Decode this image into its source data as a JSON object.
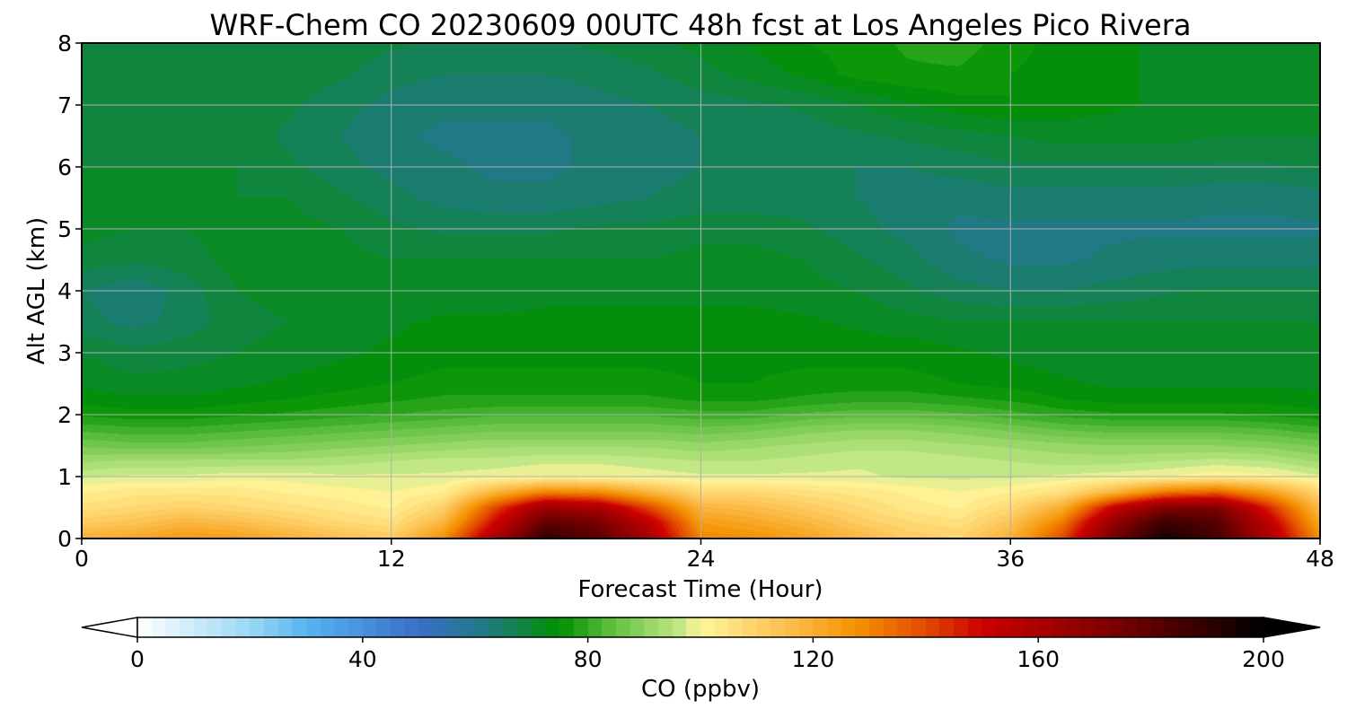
{
  "chart_data": {
    "type": "heatmap",
    "title": "WRF-Chem CO  20230609 00UTC 48h fcst at Los Angeles Pico Rivera",
    "xlabel": "Forecast Time (Hour)",
    "ylabel": "Alt AGL (km)",
    "xlim": [
      0,
      48
    ],
    "ylim": [
      0,
      8
    ],
    "xticks": [
      0,
      12,
      24,
      36,
      48
    ],
    "yticks": [
      0,
      1,
      2,
      3,
      4,
      5,
      6,
      7,
      8
    ],
    "grid": true,
    "colorbar": {
      "label": "CO  (ppbv)",
      "range": [
        0,
        200
      ],
      "ticks": [
        0,
        40,
        80,
        120,
        160,
        200
      ],
      "extend": "both",
      "orientation": "horizontal",
      "stops": [
        {
          "value": 0,
          "color": "#ffffff"
        },
        {
          "value": 20,
          "color": "#9ad8f5"
        },
        {
          "value": 30,
          "color": "#56b4f0"
        },
        {
          "value": 50,
          "color": "#3a6fc8"
        },
        {
          "value": 62,
          "color": "#1f7a80"
        },
        {
          "value": 75,
          "color": "#009000"
        },
        {
          "value": 84,
          "color": "#5cbe3c"
        },
        {
          "value": 97,
          "color": "#c8ea8a"
        },
        {
          "value": 100,
          "color": "#fff59a"
        },
        {
          "value": 115,
          "color": "#fcc050"
        },
        {
          "value": 128,
          "color": "#f49000"
        },
        {
          "value": 140,
          "color": "#e24a00"
        },
        {
          "value": 150,
          "color": "#cc0000"
        },
        {
          "value": 170,
          "color": "#880000"
        },
        {
          "value": 190,
          "color": "#300000"
        },
        {
          "value": 200,
          "color": "#000000"
        }
      ]
    },
    "x": [
      0,
      2,
      4,
      6,
      8,
      10,
      12,
      14,
      16,
      18,
      20,
      22,
      24,
      26,
      28,
      30,
      32,
      34,
      36,
      38,
      40,
      42,
      44,
      46,
      48
    ],
    "y": [
      0,
      0.25,
      0.5,
      0.75,
      1.0,
      1.25,
      1.5,
      1.75,
      2.0,
      2.25,
      2.5,
      3.0,
      3.5,
      4.0,
      4.5,
      5.0,
      5.5,
      6.0,
      6.5,
      7.0,
      7.5,
      8.0
    ],
    "values": [
      [
        120,
        122,
        126,
        124,
        120,
        116,
        112,
        128,
        160,
        190,
        180,
        160,
        130,
        128,
        124,
        118,
        112,
        110,
        120,
        140,
        175,
        195,
        185,
        160,
        128
      ],
      [
        112,
        114,
        118,
        116,
        112,
        108,
        106,
        118,
        150,
        180,
        175,
        155,
        125,
        122,
        118,
        112,
        108,
        106,
        114,
        132,
        168,
        188,
        182,
        155,
        122
      ],
      [
        106,
        108,
        110,
        108,
        106,
        104,
        102,
        110,
        140,
        165,
        160,
        140,
        118,
        116,
        112,
        108,
        104,
        102,
        108,
        120,
        152,
        172,
        172,
        145,
        116
      ],
      [
        102,
        104,
        104,
        104,
        102,
        101,
        100,
        102,
        118,
        130,
        128,
        118,
        108,
        108,
        106,
        104,
        102,
        100,
        102,
        106,
        118,
        132,
        136,
        124,
        108
      ],
      [
        97,
        98,
        98,
        99,
        99,
        98,
        98,
        98,
        99,
        100,
        100,
        99,
        98,
        98,
        98,
        98,
        97,
        97,
        97,
        98,
        99,
        100,
        102,
        101,
        98
      ],
      [
        92,
        93,
        93,
        93,
        93,
        94,
        95,
        96,
        96,
        97,
        97,
        96,
        95,
        95,
        96,
        97,
        97,
        96,
        95,
        94,
        94,
        95,
        96,
        95,
        92
      ],
      [
        87,
        86,
        86,
        87,
        88,
        89,
        90,
        91,
        92,
        92,
        92,
        92,
        91,
        92,
        93,
        94,
        94,
        93,
        92,
        91,
        90,
        90,
        90,
        89,
        87
      ],
      [
        82,
        81,
        81,
        82,
        83,
        84,
        85,
        86,
        87,
        87,
        87,
        87,
        86,
        87,
        89,
        90,
        90,
        89,
        87,
        85,
        84,
        84,
        84,
        83,
        81
      ],
      [
        77,
        76,
        76,
        77,
        78,
        79,
        80,
        81,
        82,
        82,
        82,
        82,
        81,
        81,
        83,
        84,
        84,
        83,
        81,
        79,
        78,
        78,
        78,
        77,
        76
      ],
      [
        74,
        73,
        73,
        74,
        75,
        76,
        77,
        78,
        78,
        78,
        78,
        78,
        77,
        77,
        78,
        79,
        79,
        78,
        77,
        75,
        74,
        74,
        74,
        74,
        73
      ],
      [
        72,
        71,
        71,
        72,
        73,
        74,
        75,
        76,
        76,
        76,
        76,
        76,
        75,
        75,
        76,
        76,
        76,
        75,
        74,
        73,
        72,
        72,
        72,
        72,
        72
      ],
      [
        70,
        68,
        69,
        70,
        71,
        72,
        73,
        74,
        74,
        74,
        74,
        74,
        74,
        74,
        74,
        74,
        74,
        73,
        72,
        71,
        71,
        71,
        71,
        71,
        71
      ],
      [
        66,
        64,
        66,
        69,
        70,
        71,
        72,
        73,
        73,
        73,
        73,
        73,
        73,
        73,
        73,
        72,
        71,
        70,
        70,
        70,
        70,
        70,
        70,
        70,
        70
      ],
      [
        65,
        63,
        66,
        70,
        71,
        71,
        71,
        71,
        71,
        72,
        72,
        72,
        72,
        72,
        71,
        70,
        68,
        66,
        65,
        65,
        66,
        67,
        68,
        68,
        68
      ],
      [
        69,
        68,
        69,
        71,
        72,
        71,
        70,
        70,
        70,
        70,
        70,
        70,
        71,
        71,
        70,
        68,
        66,
        63,
        62,
        62,
        63,
        64,
        64,
        64,
        64
      ],
      [
        71,
        70,
        70,
        71,
        71,
        70,
        68,
        67,
        67,
        67,
        68,
        68,
        69,
        69,
        68,
        66,
        64,
        62,
        62,
        62,
        62,
        62,
        62,
        62,
        62
      ],
      [
        71,
        71,
        70,
        70,
        70,
        68,
        66,
        64,
        63,
        63,
        64,
        65,
        66,
        66,
        66,
        65,
        64,
        63,
        64,
        64,
        64,
        64,
        63,
        63,
        64
      ],
      [
        70,
        70,
        70,
        70,
        68,
        66,
        64,
        63,
        62,
        62,
        63,
        64,
        65,
        65,
        65,
        65,
        65,
        66,
        67,
        67,
        67,
        67,
        67,
        67,
        68
      ],
      [
        69,
        69,
        69,
        69,
        67,
        65,
        63,
        62,
        62,
        62,
        63,
        64,
        65,
        65,
        66,
        67,
        68,
        69,
        70,
        71,
        71,
        71,
        70,
        70,
        70
      ],
      [
        69,
        68,
        69,
        69,
        68,
        66,
        64,
        63,
        63,
        63,
        64,
        65,
        66,
        67,
        68,
        70,
        72,
        74,
        75,
        74,
        73,
        72,
        71,
        71,
        71
      ],
      [
        69,
        68,
        69,
        69,
        69,
        68,
        66,
        65,
        65,
        65,
        66,
        67,
        69,
        71,
        73,
        76,
        77,
        77,
        75,
        74,
        73,
        72,
        71,
        71,
        71
      ],
      [
        70,
        69,
        70,
        70,
        70,
        69,
        68,
        67,
        67,
        67,
        68,
        69,
        71,
        73,
        75,
        76,
        78,
        79,
        76,
        74,
        73,
        72,
        72,
        72,
        72
      ]
    ]
  }
}
